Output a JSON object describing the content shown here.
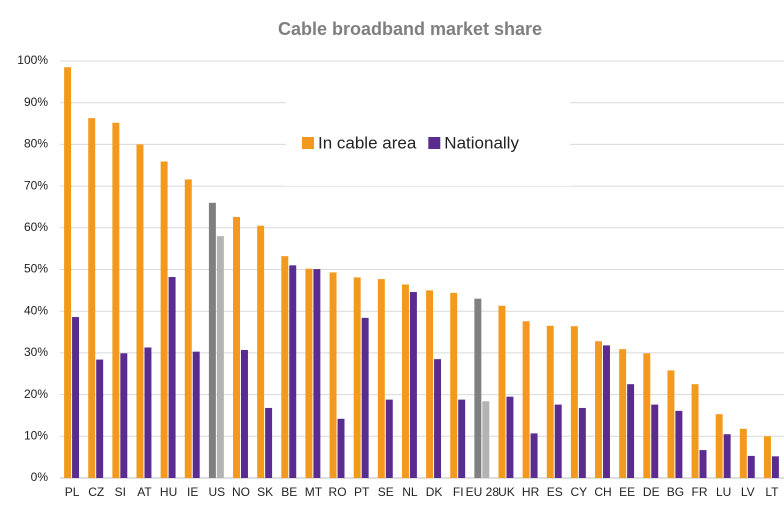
{
  "chart_data": {
    "type": "bar",
    "title": "Cable broadband market share",
    "categories": [
      "PL",
      "CZ",
      "SI",
      "AT",
      "HU",
      "IE",
      "US",
      "NO",
      "SK",
      "BE",
      "MT",
      "RO",
      "PT",
      "SE",
      "NL",
      "DK",
      "FI",
      "EU 28",
      "UK",
      "HR",
      "ES",
      "CY",
      "CH",
      "EE",
      "DE",
      "BG",
      "FR",
      "LU",
      "LV",
      "LT"
    ],
    "series": [
      {
        "name": "In cable area",
        "color": "#f39a1e",
        "point_colors": {
          "6": "#808080",
          "17": "#808080"
        },
        "values": [
          98.5,
          86.3,
          85.2,
          80,
          75.9,
          71.6,
          66,
          62.6,
          60.5,
          53.2,
          50.2,
          49.3,
          48.1,
          47.7,
          46.4,
          45,
          44.4,
          43,
          41.3,
          37.6,
          36.5,
          36.4,
          32.8,
          30.9,
          29.9,
          25.8,
          22.5,
          15.3,
          11.8,
          10
        ]
      },
      {
        "name": "Nationally",
        "color": "#5b2c8f",
        "point_colors": {
          "6": "#b3b3b3",
          "17": "#b3b3b3"
        },
        "values": [
          38.6,
          28.4,
          29.9,
          31.3,
          48.2,
          30.3,
          58,
          30.7,
          16.8,
          51,
          50.1,
          14.2,
          38.4,
          18.8,
          44.6,
          28.5,
          18.8,
          18.4,
          19.5,
          10.7,
          17.6,
          16.8,
          31.8,
          22.5,
          17.6,
          16.1,
          6.7,
          10.5,
          5.3,
          5.2
        ]
      }
    ],
    "ylim": [
      0,
      100
    ],
    "yticks": [
      {
        "value": 0,
        "label": "0%"
      },
      {
        "value": 10,
        "label": "10%"
      },
      {
        "value": 20,
        "label": "20%"
      },
      {
        "value": 30,
        "label": "30%"
      },
      {
        "value": 40,
        "label": "40%"
      },
      {
        "value": 50,
        "label": "50%"
      },
      {
        "value": 60,
        "label": "60%"
      },
      {
        "value": 70,
        "label": "70%"
      },
      {
        "value": 80,
        "label": "80%"
      },
      {
        "value": 90,
        "label": "90%"
      },
      {
        "value": 100,
        "label": "100%"
      }
    ],
    "grid": true,
    "legend": "top"
  }
}
